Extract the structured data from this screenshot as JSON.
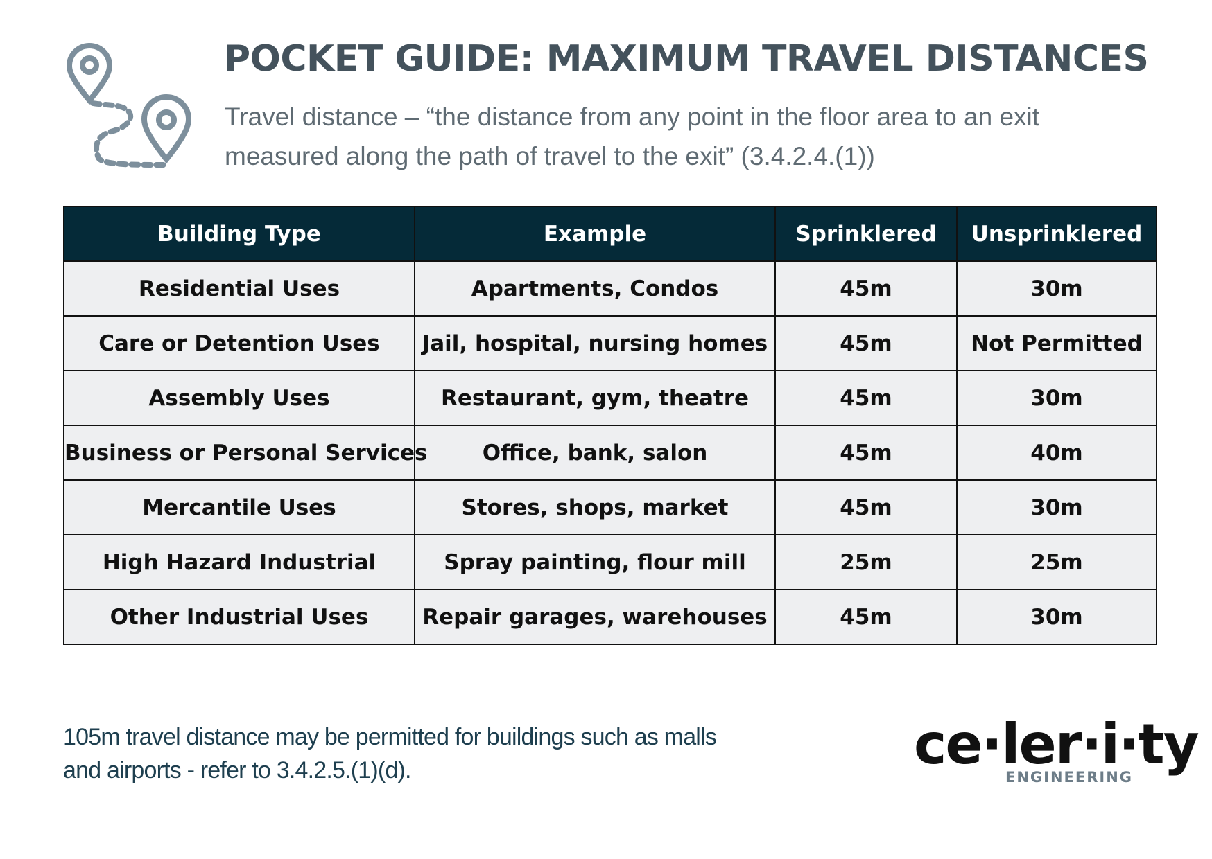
{
  "header": {
    "title": "POCKET GUIDE:  MAXIMUM TRAVEL DISTANCES",
    "subtitle": "Travel distance – “the distance from any point in the floor area to an exit measured along the path of travel to the exit” (3.4.2.4.(1))"
  },
  "table": {
    "columns": [
      "Building Type",
      "Example",
      "Sprinklered",
      "Unsprinklered"
    ],
    "rows": [
      [
        "Residential Uses",
        "Apartments, Condos",
        "45m",
        "30m"
      ],
      [
        "Care or Detention Uses",
        "Jail, hospital, nursing homes",
        "45m",
        "Not Permitted"
      ],
      [
        "Assembly Uses",
        "Restaurant, gym, theatre",
        "45m",
        "30m"
      ],
      [
        "Business or Personal Services",
        "Office, bank, salon",
        "45m",
        "40m"
      ],
      [
        "Mercantile Uses",
        "Stores, shops, market",
        "45m",
        "30m"
      ],
      [
        "High Hazard Industrial",
        "Spray painting, flour mill",
        "25m",
        "25m"
      ],
      [
        "Other Industrial Uses",
        "Repair garages, warehouses",
        "45m",
        "30m"
      ]
    ]
  },
  "footer": {
    "note": "105m travel distance may be permitted for buildings such as malls and airports - refer to 3.4.2.5.(1)(d)."
  },
  "logo": {
    "name": "ce·ler·i·ty",
    "tagline": "ENGINEERING"
  }
}
